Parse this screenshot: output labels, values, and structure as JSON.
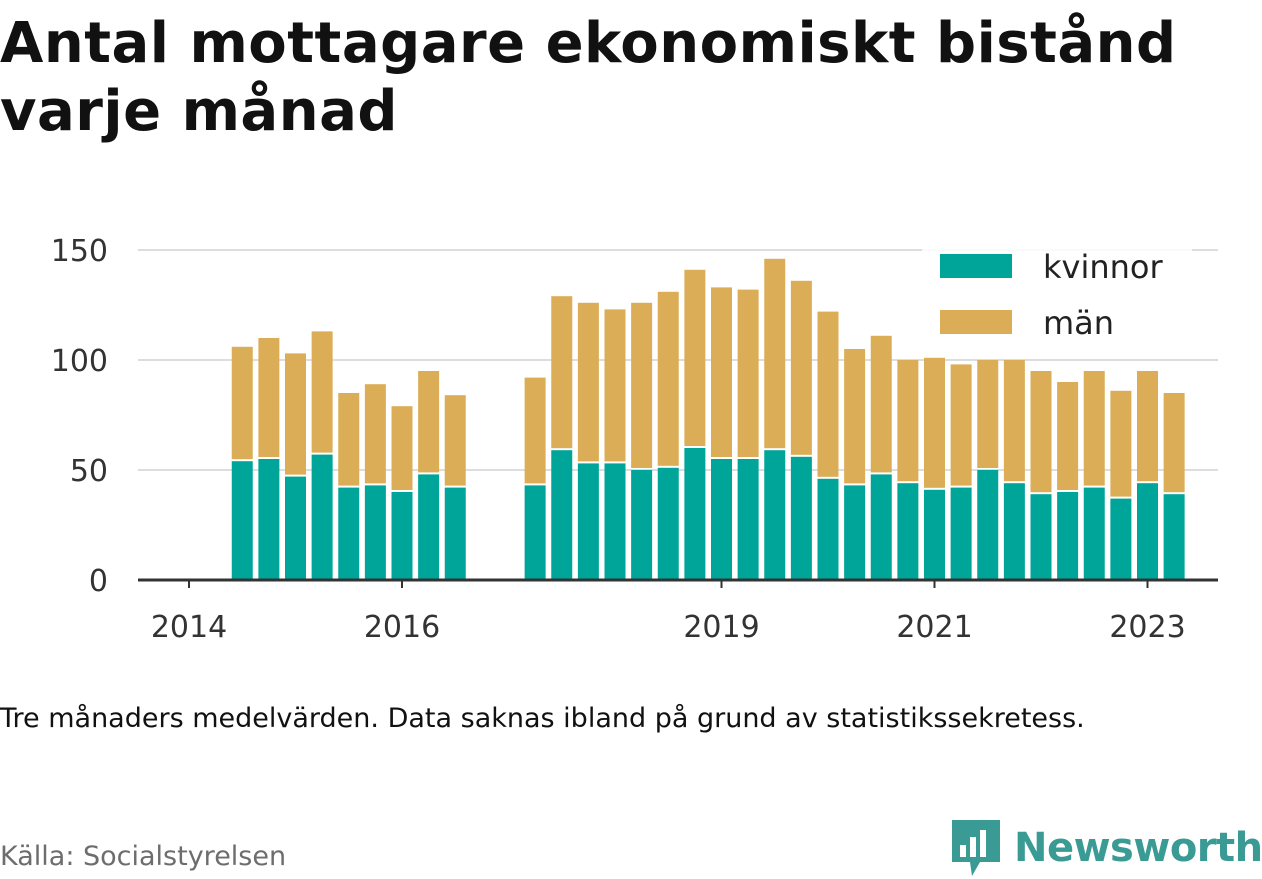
{
  "title": "Antal mottagare ekonomiskt bistånd varje månad",
  "note": "Tre månaders medelvärden. Data saknas ibland på grund av statistikssekretess.",
  "source": "Källa: Socialstyrelsen",
  "brand": "Newsworthy",
  "colors": {
    "kvinnor": "#00a59a",
    "man": "#dcad57",
    "grid": "#dddddd",
    "axis": "#333333",
    "brand": "#3a9a94"
  },
  "chart_data": {
    "type": "bar",
    "stacked": true,
    "x": [
      "2014-07",
      "2014-10",
      "2015-01",
      "2015-04",
      "2015-07",
      "2015-10",
      "2016-01",
      "2016-04",
      "2016-07",
      "2017-04",
      "2017-07",
      "2017-10",
      "2018-01",
      "2018-04",
      "2018-07",
      "2018-10",
      "2019-01",
      "2019-04",
      "2019-07",
      "2019-10",
      "2020-01",
      "2020-04",
      "2020-07",
      "2020-10",
      "2021-01",
      "2021-04",
      "2021-07",
      "2021-10",
      "2022-01",
      "2022-04",
      "2022-07",
      "2022-10",
      "2023-01",
      "2023-04"
    ],
    "series": [
      {
        "name": "kvinnor",
        "values": [
          54,
          55,
          47,
          57,
          42,
          43,
          40,
          48,
          42,
          43,
          59,
          53,
          53,
          50,
          51,
          60,
          55,
          55,
          59,
          56,
          46,
          43,
          48,
          44,
          41,
          42,
          50,
          44,
          39,
          40,
          42,
          37,
          44,
          39
        ]
      },
      {
        "name": "män",
        "values": [
          52,
          55,
          56,
          56,
          43,
          46,
          39,
          47,
          42,
          49,
          70,
          73,
          70,
          76,
          80,
          81,
          78,
          77,
          87,
          80,
          76,
          62,
          63,
          56,
          60,
          56,
          50,
          56,
          56,
          50,
          53,
          49,
          51,
          46
        ]
      }
    ],
    "xticks": [
      "2014",
      "2016",
      "2019",
      "2021",
      "2023"
    ],
    "yticks": [
      0,
      50,
      100,
      150
    ],
    "ylim": [
      0,
      150
    ],
    "legend": {
      "position": "top-right",
      "entries": [
        "kvinnor",
        "män"
      ]
    },
    "grid": true
  }
}
